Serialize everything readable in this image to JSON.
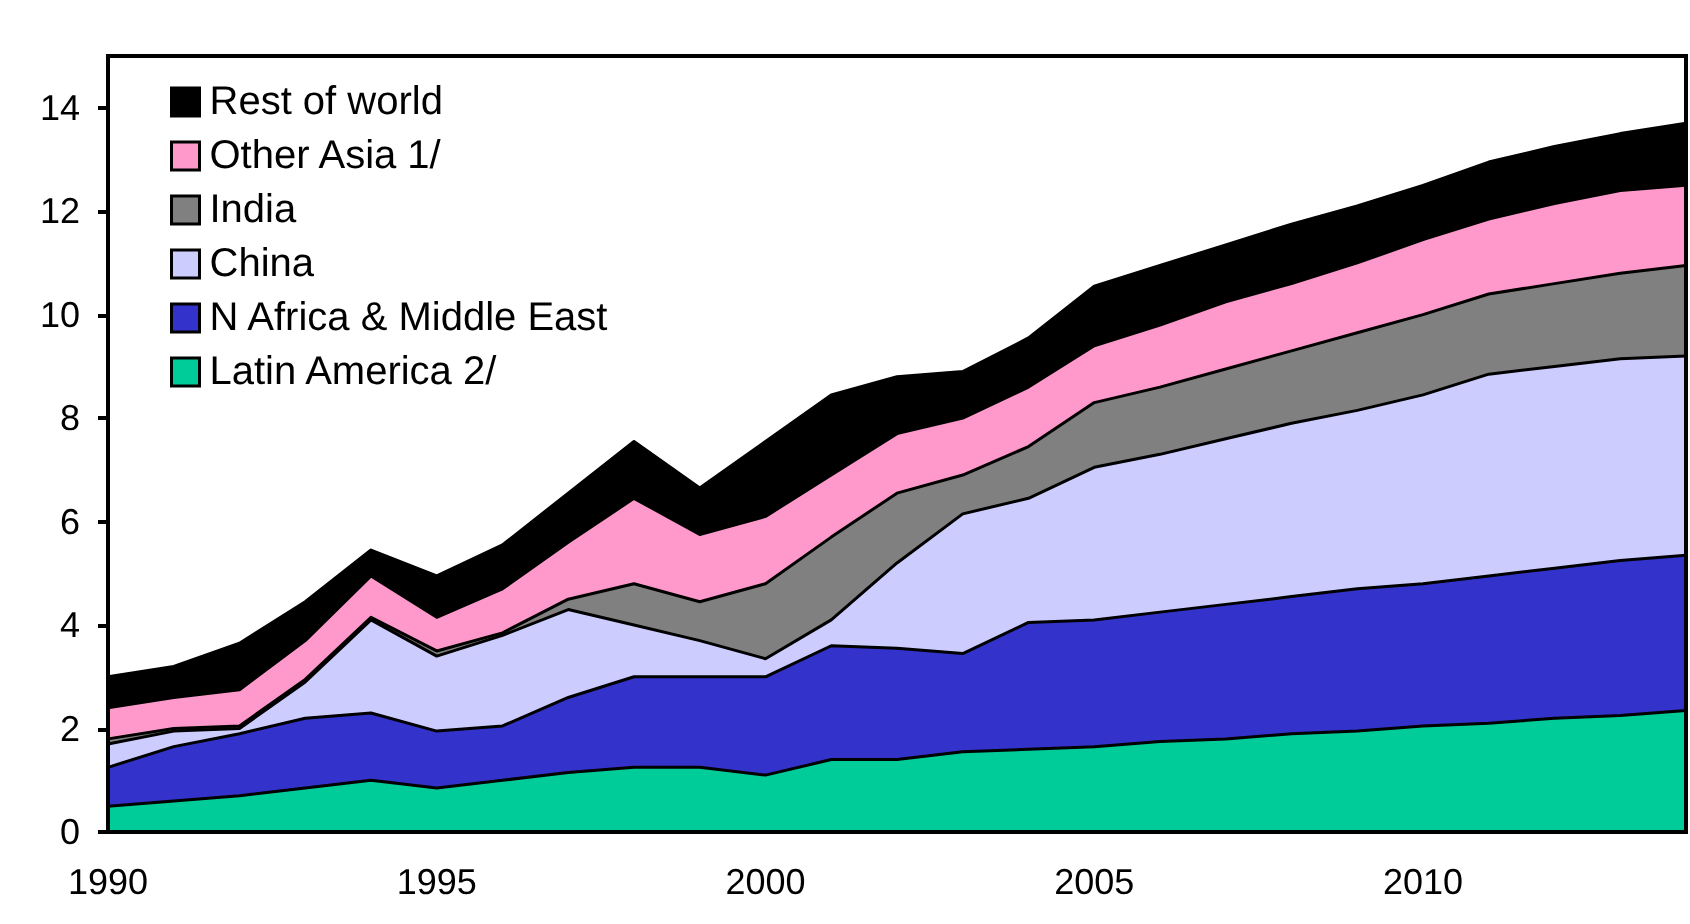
{
  "chart_data": {
    "type": "area",
    "stacked": true,
    "legend": "top left",
    "grid": false,
    "x": [
      1990,
      1991,
      1992,
      1993,
      1994,
      1995,
      1996,
      1997,
      1998,
      1999,
      2000,
      2001,
      2002,
      2003,
      2004,
      2005,
      2006,
      2007,
      2008,
      2009,
      2010,
      2011,
      2012,
      2013,
      2014
    ],
    "xlim": [
      1990,
      2014
    ],
    "xticks": [
      1990,
      1995,
      2000,
      2005,
      2010
    ],
    "ylim": [
      0,
      15
    ],
    "yticks": [
      0,
      2,
      4,
      6,
      8,
      10,
      12,
      14
    ],
    "series": [
      {
        "name": "Latin America 2/",
        "color": "#00cc99",
        "values": [
          0.5,
          0.6,
          0.7,
          0.85,
          1.0,
          0.85,
          1.0,
          1.15,
          1.25,
          1.25,
          1.1,
          1.4,
          1.4,
          1.55,
          1.6,
          1.65,
          1.75,
          1.8,
          1.9,
          1.95,
          2.05,
          2.1,
          2.2,
          2.25,
          2.35
        ]
      },
      {
        "name": "N Africa & Middle East",
        "color": "#3333cc",
        "values": [
          0.75,
          1.05,
          1.2,
          1.35,
          1.3,
          1.1,
          1.05,
          1.45,
          1.75,
          1.75,
          1.9,
          2.2,
          2.15,
          1.9,
          2.45,
          2.45,
          2.5,
          2.6,
          2.65,
          2.75,
          2.75,
          2.85,
          2.9,
          3.0,
          3.0
        ]
      },
      {
        "name": "China",
        "color": "#ccccff",
        "values": [
          0.45,
          0.3,
          0.1,
          0.7,
          1.8,
          1.45,
          1.75,
          1.7,
          1.0,
          0.7,
          0.35,
          0.5,
          1.65,
          2.7,
          2.4,
          2.95,
          3.05,
          3.2,
          3.35,
          3.45,
          3.65,
          3.9,
          3.9,
          3.9,
          3.85
        ]
      },
      {
        "name": "India",
        "color": "#808080",
        "values": [
          0.1,
          0.05,
          0.05,
          0.05,
          0.05,
          0.1,
          0.05,
          0.2,
          0.8,
          0.75,
          1.45,
          1.6,
          1.35,
          0.75,
          1.0,
          1.25,
          1.3,
          1.35,
          1.4,
          1.5,
          1.55,
          1.55,
          1.6,
          1.65,
          1.75
        ]
      },
      {
        "name": "Other Asia 1/",
        "color": "#ff99cc",
        "values": [
          0.6,
          0.6,
          0.7,
          0.75,
          0.8,
          0.65,
          0.85,
          1.1,
          1.65,
          1.3,
          1.3,
          1.2,
          1.15,
          1.1,
          1.15,
          1.1,
          1.2,
          1.3,
          1.3,
          1.35,
          1.45,
          1.45,
          1.55,
          1.6,
          1.55
        ]
      },
      {
        "name": "Rest of world",
        "color": "#000000",
        "values": [
          0.6,
          0.6,
          0.9,
          0.75,
          0.5,
          0.8,
          0.85,
          0.95,
          1.1,
          0.9,
          1.45,
          1.55,
          1.1,
          0.9,
          0.95,
          1.15,
          1.15,
          1.1,
          1.15,
          1.1,
          1.05,
          1.1,
          1.1,
          1.1,
          1.2
        ]
      }
    ]
  }
}
